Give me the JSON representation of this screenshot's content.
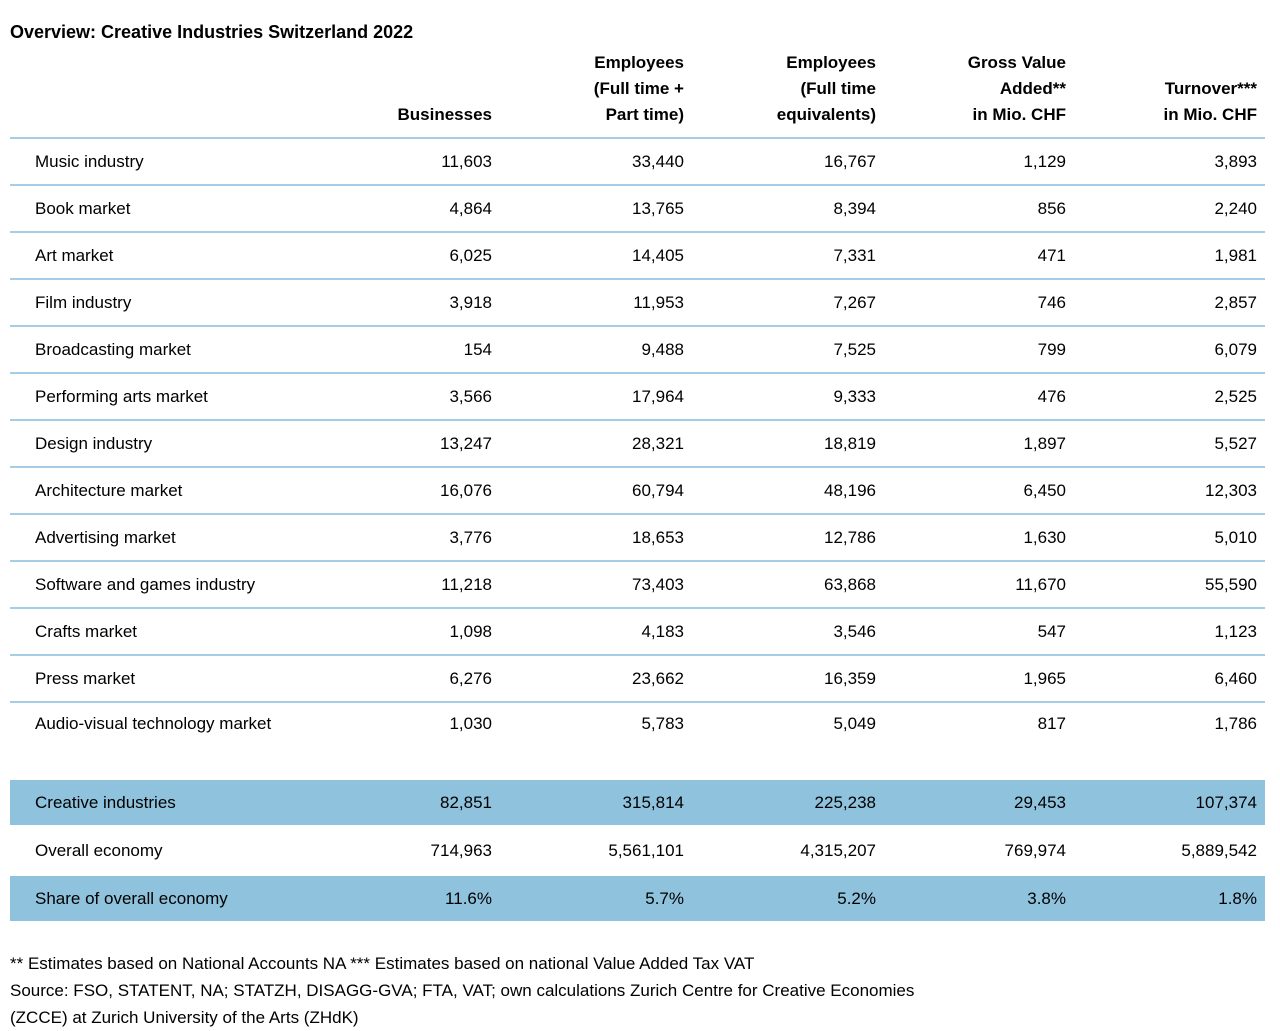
{
  "page": {
    "title": "Overview: Creative Industries Switzerland 2022",
    "footnotes": [
      "** Estimates based on National Accounts NA *** Estimates based on national Value Added Tax VAT",
      "Source: FSO, STATENT, NA; STATZH, DISAGG-GVA; FTA, VAT; own calculations Zurich Centre for Creative Economies",
      "(ZCCE) at Zurich University of the Arts (ZHdK)"
    ]
  },
  "colors": {
    "highlight_row": "#8FC2DD",
    "separator": "#A5CDE5"
  },
  "chart_data": {
    "type": "table",
    "title": "Overview: Creative Industries Switzerland 2022",
    "columns": [
      "",
      "Businesses",
      "Employees\n(Full time +\nPart time)",
      "Employees\n(Full time\nequivalents)",
      "Gross Value\nAdded**\nin Mio. CHF",
      "Turnover***\nin Mio. CHF"
    ],
    "rows": [
      {
        "label": "Music industry",
        "values": [
          "11,603",
          "33,440",
          "16,767",
          "1,129",
          "3,893"
        ],
        "highlight": false
      },
      {
        "label": "Book market",
        "values": [
          "4,864",
          "13,765",
          "8,394",
          "856",
          "2,240"
        ],
        "highlight": false
      },
      {
        "label": "Art market",
        "values": [
          "6,025",
          "14,405",
          "7,331",
          "471",
          "1,981"
        ],
        "highlight": false
      },
      {
        "label": "Film industry",
        "values": [
          "3,918",
          "11,953",
          "7,267",
          "746",
          "2,857"
        ],
        "highlight": false
      },
      {
        "label": "Broadcasting market",
        "values": [
          "154",
          "9,488",
          "7,525",
          "799",
          "6,079"
        ],
        "highlight": false
      },
      {
        "label": "Performing arts market",
        "values": [
          "3,566",
          "17,964",
          "9,333",
          "476",
          "2,525"
        ],
        "highlight": false
      },
      {
        "label": "Design industry",
        "values": [
          "13,247",
          "28,321",
          "18,819",
          "1,897",
          "5,527"
        ],
        "highlight": false
      },
      {
        "label": "Architecture market",
        "values": [
          "16,076",
          "60,794",
          "48,196",
          "6,450",
          "12,303"
        ],
        "highlight": false
      },
      {
        "label": "Advertising market",
        "values": [
          "3,776",
          "18,653",
          "12,786",
          "1,630",
          "5,010"
        ],
        "highlight": false
      },
      {
        "label": "Software and games industry",
        "values": [
          "11,218",
          "73,403",
          "63,868",
          "11,670",
          "55,590"
        ],
        "highlight": false
      },
      {
        "label": "Crafts market",
        "values": [
          "1,098",
          "4,183",
          "3,546",
          "547",
          "1,123"
        ],
        "highlight": false
      },
      {
        "label": "Press market",
        "values": [
          "6,276",
          "23,662",
          "16,359",
          "1,965",
          "6,460"
        ],
        "highlight": false
      },
      {
        "label": "Audio-visual technology market",
        "values": [
          "1,030",
          "5,783",
          "5,049",
          "817",
          "1,786"
        ],
        "highlight": false
      },
      {
        "label": "Creative industries",
        "values": [
          "82,851",
          "315,814",
          "225,238",
          "29,453",
          "107,374"
        ],
        "highlight": true
      },
      {
        "label": "Overall economy",
        "values": [
          "714,963",
          "5,561,101",
          "4,315,207",
          "769,974",
          "5,889,542"
        ],
        "highlight": false
      },
      {
        "label": "Share of overall economy",
        "values": [
          "11.6%",
          "5.7%",
          "5.2%",
          "3.8%",
          "1.8%"
        ],
        "highlight": true
      }
    ]
  }
}
